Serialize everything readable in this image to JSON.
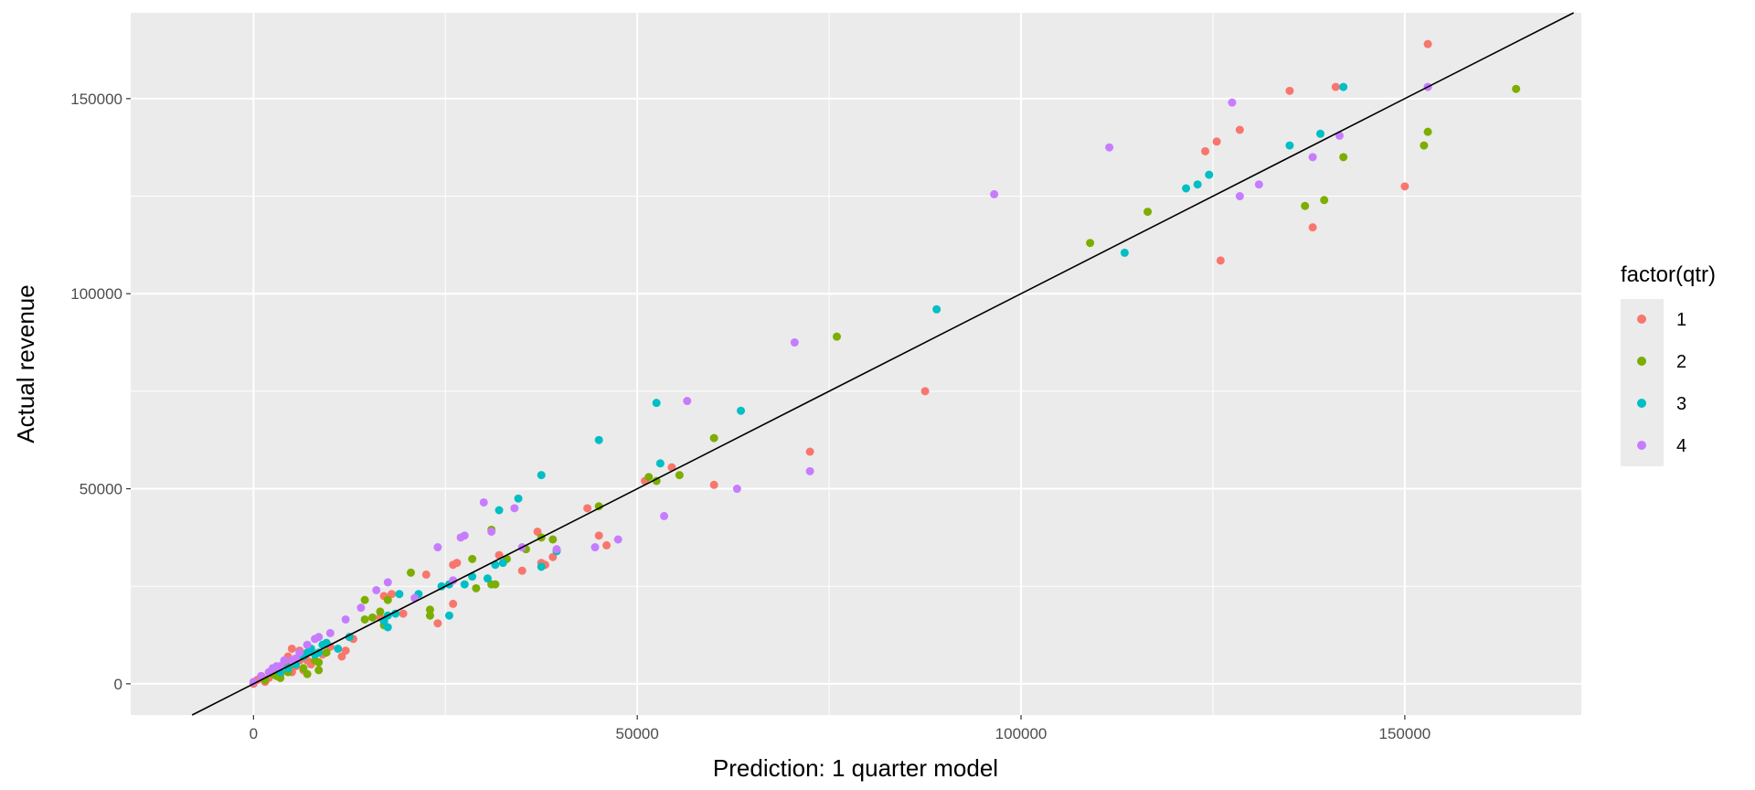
{
  "chart_data": {
    "type": "scatter",
    "title": "",
    "xlabel": "Prediction: 1 quarter model",
    "ylabel": "Actual revenue",
    "xlim": [
      -16000,
      173000
    ],
    "ylim": [
      -8000,
      172000
    ],
    "x_ticks": [
      0,
      50000,
      100000,
      150000
    ],
    "y_ticks": [
      0,
      50000,
      100000,
      150000
    ],
    "x_tick_labels": [
      "0",
      "50000",
      "100000",
      "150000"
    ],
    "y_tick_labels": [
      "0",
      "50000",
      "100000",
      "150000"
    ],
    "grid": true,
    "reference_line": {
      "slope": 1,
      "intercept": 0,
      "color": "#000000"
    },
    "legend": {
      "title": "factor(qtr)",
      "position": "right"
    },
    "series": [
      {
        "name": "1",
        "color": "#F8766D",
        "points": [
          [
            153000,
            164000
          ],
          [
            135000,
            152000
          ],
          [
            141000,
            153000
          ],
          [
            124000,
            136500
          ],
          [
            125500,
            139000
          ],
          [
            128500,
            142000
          ],
          [
            138000,
            117000
          ],
          [
            150000,
            127500
          ],
          [
            126000,
            108500
          ],
          [
            87500,
            75000
          ],
          [
            72500,
            59500
          ],
          [
            60000,
            51000
          ],
          [
            54500,
            55500
          ],
          [
            51000,
            52000
          ],
          [
            43500,
            45000
          ],
          [
            45000,
            38000
          ],
          [
            46000,
            35500
          ],
          [
            37000,
            39000
          ],
          [
            37500,
            31000
          ],
          [
            38000,
            30500
          ],
          [
            39000,
            32500
          ],
          [
            35000,
            29000
          ],
          [
            32000,
            33000
          ],
          [
            26000,
            30500
          ],
          [
            26500,
            31000
          ],
          [
            22500,
            28000
          ],
          [
            26000,
            20500
          ],
          [
            24000,
            15500
          ],
          [
            19500,
            18000
          ],
          [
            18000,
            23000
          ],
          [
            17000,
            22500
          ],
          [
            16500,
            17000
          ],
          [
            13000,
            11500
          ],
          [
            12000,
            8500
          ],
          [
            11500,
            7000
          ],
          [
            10000,
            9500
          ],
          [
            9000,
            7500
          ],
          [
            7500,
            5000
          ],
          [
            6000,
            8500
          ],
          [
            6000,
            6000
          ],
          [
            5500,
            4500
          ],
          [
            5000,
            3000
          ],
          [
            4500,
            7000
          ],
          [
            4000,
            5500
          ],
          [
            3500,
            2500
          ],
          [
            3000,
            4000
          ],
          [
            2500,
            3500
          ],
          [
            2000,
            1500
          ],
          [
            1500,
            500
          ],
          [
            1000,
            2000
          ],
          [
            500,
            1000
          ],
          [
            0,
            0
          ],
          [
            6500,
            3500
          ],
          [
            5000,
            9000
          ],
          [
            7000,
            6000
          ]
        ]
      },
      {
        "name": "2",
        "color": "#7CAE00",
        "points": [
          [
            164500,
            152500
          ],
          [
            153000,
            141500
          ],
          [
            152500,
            138000
          ],
          [
            142000,
            135000
          ],
          [
            139500,
            124000
          ],
          [
            137000,
            122500
          ],
          [
            116500,
            121000
          ],
          [
            109000,
            113000
          ],
          [
            76000,
            89000
          ],
          [
            60000,
            63000
          ],
          [
            55500,
            53500
          ],
          [
            51500,
            53000
          ],
          [
            52500,
            52000
          ],
          [
            45000,
            45500
          ],
          [
            39000,
            37000
          ],
          [
            37500,
            37500
          ],
          [
            35500,
            34500
          ],
          [
            33000,
            32000
          ],
          [
            31000,
            39500
          ],
          [
            31000,
            25500
          ],
          [
            31500,
            25500
          ],
          [
            29000,
            24500
          ],
          [
            28500,
            32000
          ],
          [
            23000,
            17500
          ],
          [
            23000,
            19000
          ],
          [
            20500,
            28500
          ],
          [
            17500,
            21500
          ],
          [
            17000,
            15000
          ],
          [
            16500,
            18500
          ],
          [
            15500,
            17000
          ],
          [
            14500,
            21500
          ],
          [
            14500,
            16500
          ],
          [
            12500,
            12000
          ],
          [
            9500,
            8000
          ],
          [
            8500,
            3500
          ],
          [
            8500,
            5500
          ],
          [
            8000,
            6000
          ],
          [
            7500,
            8500
          ],
          [
            7000,
            2500
          ],
          [
            6500,
            4000
          ],
          [
            5000,
            5000
          ],
          [
            4500,
            3000
          ],
          [
            3500,
            1500
          ],
          [
            3000,
            2000
          ],
          [
            2500,
            2500
          ],
          [
            1500,
            1000
          ]
        ]
      },
      {
        "name": "3",
        "color": "#00BFC4",
        "points": [
          [
            142000,
            153000
          ],
          [
            139000,
            141000
          ],
          [
            135000,
            138000
          ],
          [
            124500,
            130500
          ],
          [
            123000,
            128000
          ],
          [
            121500,
            127000
          ],
          [
            113500,
            110500
          ],
          [
            89000,
            96000
          ],
          [
            63500,
            70000
          ],
          [
            52500,
            72000
          ],
          [
            53000,
            56500
          ],
          [
            45000,
            62500
          ],
          [
            37500,
            53500
          ],
          [
            34500,
            47500
          ],
          [
            32000,
            44500
          ],
          [
            32500,
            31000
          ],
          [
            31500,
            30500
          ],
          [
            30500,
            27000
          ],
          [
            28500,
            27500
          ],
          [
            39500,
            34000
          ],
          [
            37500,
            30000
          ],
          [
            27500,
            25500
          ],
          [
            25500,
            25500
          ],
          [
            24500,
            25000
          ],
          [
            25500,
            17500
          ],
          [
            21500,
            23000
          ],
          [
            19000,
            23000
          ],
          [
            18500,
            18000
          ],
          [
            17500,
            17500
          ],
          [
            17500,
            14500
          ],
          [
            17000,
            16000
          ],
          [
            12500,
            12000
          ],
          [
            11000,
            9000
          ],
          [
            9500,
            10500
          ],
          [
            9000,
            10000
          ],
          [
            8500,
            8000
          ],
          [
            8000,
            7500
          ],
          [
            7500,
            9000
          ],
          [
            7000,
            8000
          ],
          [
            6500,
            7000
          ],
          [
            5500,
            5000
          ],
          [
            4500,
            4000
          ],
          [
            3500,
            3000
          ]
        ]
      },
      {
        "name": "4",
        "color": "#C77CFF",
        "points": [
          [
            127500,
            149000
          ],
          [
            153000,
            153000
          ],
          [
            141500,
            140500
          ],
          [
            138000,
            135000
          ],
          [
            131000,
            128000
          ],
          [
            128500,
            125000
          ],
          [
            111500,
            137500
          ],
          [
            96500,
            125500
          ],
          [
            70500,
            87500
          ],
          [
            56500,
            72500
          ],
          [
            53500,
            43000
          ],
          [
            72500,
            54500
          ],
          [
            63000,
            50000
          ],
          [
            47500,
            37000
          ],
          [
            44500,
            35000
          ],
          [
            39500,
            34500
          ],
          [
            35000,
            35000
          ],
          [
            34000,
            45000
          ],
          [
            30000,
            46500
          ],
          [
            27500,
            38000
          ],
          [
            27000,
            37500
          ],
          [
            31000,
            39000
          ],
          [
            26000,
            26500
          ],
          [
            24000,
            35000
          ],
          [
            21000,
            22000
          ],
          [
            17500,
            26000
          ],
          [
            16000,
            24000
          ],
          [
            14000,
            19500
          ],
          [
            12000,
            16500
          ],
          [
            10000,
            13000
          ],
          [
            8500,
            12000
          ],
          [
            8000,
            11500
          ],
          [
            7000,
            10000
          ],
          [
            6000,
            8000
          ],
          [
            5500,
            6500
          ],
          [
            5000,
            6000
          ],
          [
            4000,
            6000
          ],
          [
            3500,
            4500
          ],
          [
            3000,
            4500
          ],
          [
            2500,
            4000
          ],
          [
            2000,
            3000
          ],
          [
            1000,
            2000
          ],
          [
            0,
            500
          ]
        ]
      }
    ]
  }
}
